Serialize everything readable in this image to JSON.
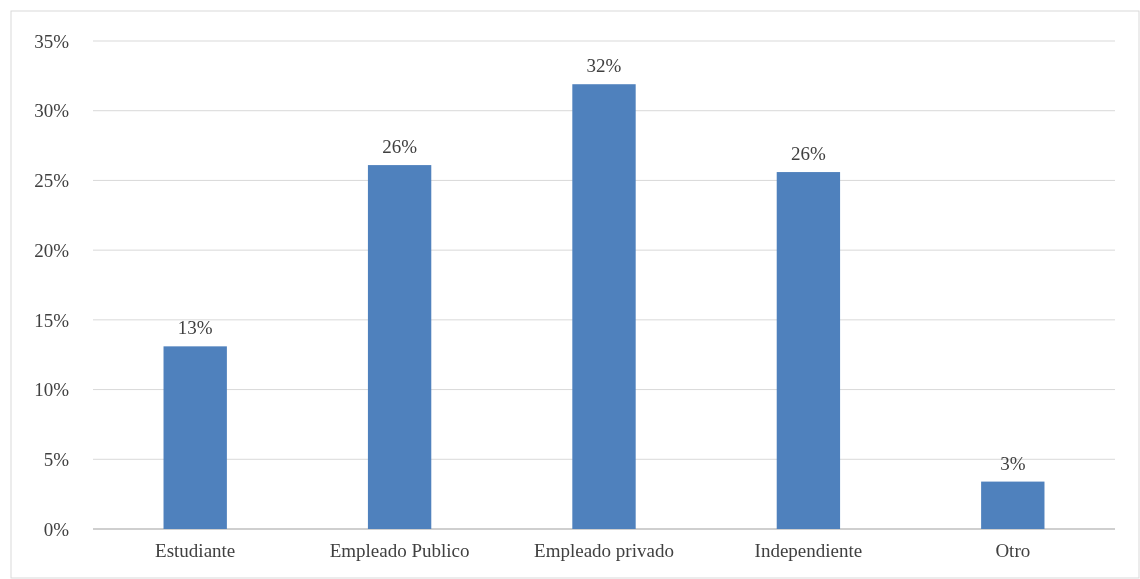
{
  "chart_data": {
    "type": "bar",
    "categories": [
      "Estudiante",
      "Empleado Publico",
      "Empleado privado",
      "Independiente",
      "Otro"
    ],
    "values": [
      13.1,
      26.1,
      31.9,
      25.6,
      3.4
    ],
    "value_labels": [
      "13%",
      "26%",
      "32%",
      "26%",
      "3%"
    ],
    "color": "#4f81bd",
    "ylim": [
      0,
      35
    ],
    "yticks": [
      {
        "value": 0,
        "label": "0%"
      },
      {
        "value": 5,
        "label": "5%"
      },
      {
        "value": 10,
        "label": "10%"
      },
      {
        "value": 15,
        "label": "15%"
      },
      {
        "value": 20,
        "label": "20%"
      },
      {
        "value": 25,
        "label": "25%"
      },
      {
        "value": 30,
        "label": "30%"
      },
      {
        "value": 35,
        "label": "35%"
      }
    ],
    "grid": "y"
  }
}
